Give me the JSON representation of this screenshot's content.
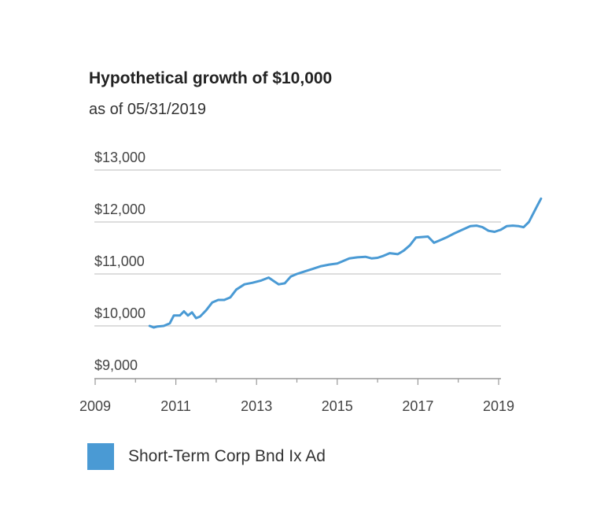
{
  "title": "Hypothetical growth of $10,000",
  "subtitle": "as of 05/31/2019",
  "colors": {
    "series": "#4a9ad4",
    "grid": "#dddddd",
    "axis": "#999999",
    "tick_text": "#444444"
  },
  "chart_data": {
    "type": "line",
    "ylim": [
      9000,
      13000
    ],
    "xlim": [
      2009,
      2019.4
    ],
    "y_ticks": [
      9000,
      10000,
      11000,
      12000,
      13000
    ],
    "y_tick_labels": [
      "$9,000",
      "$10,000",
      "$11,000",
      "$12,000",
      "$13,000"
    ],
    "x_ticks": [
      2009,
      2011,
      2013,
      2015,
      2017,
      2019
    ],
    "x_tick_labels": [
      "2009",
      "2011",
      "2013",
      "2015",
      "2017",
      "2019"
    ],
    "grid": true,
    "legend_position": "bottom-left",
    "series": [
      {
        "name": "Short-Term Corp Bnd Ix Ad",
        "color": "#4a9ad4",
        "points": [
          [
            2010.35,
            10000
          ],
          [
            2010.45,
            9970
          ],
          [
            2010.55,
            9990
          ],
          [
            2010.7,
            10000
          ],
          [
            2010.85,
            10050
          ],
          [
            2010.95,
            10200
          ],
          [
            2011.1,
            10200
          ],
          [
            2011.2,
            10280
          ],
          [
            2011.3,
            10200
          ],
          [
            2011.4,
            10260
          ],
          [
            2011.5,
            10150
          ],
          [
            2011.6,
            10180
          ],
          [
            2011.75,
            10300
          ],
          [
            2011.9,
            10450
          ],
          [
            2012.05,
            10500
          ],
          [
            2012.2,
            10500
          ],
          [
            2012.35,
            10550
          ],
          [
            2012.5,
            10700
          ],
          [
            2012.7,
            10800
          ],
          [
            2012.9,
            10830
          ],
          [
            2013.1,
            10870
          ],
          [
            2013.3,
            10930
          ],
          [
            2013.45,
            10850
          ],
          [
            2013.55,
            10800
          ],
          [
            2013.7,
            10820
          ],
          [
            2013.85,
            10950
          ],
          [
            2014.0,
            11000
          ],
          [
            2014.2,
            11050
          ],
          [
            2014.4,
            11100
          ],
          [
            2014.6,
            11150
          ],
          [
            2014.8,
            11180
          ],
          [
            2015.0,
            11200
          ],
          [
            2015.15,
            11250
          ],
          [
            2015.3,
            11300
          ],
          [
            2015.5,
            11320
          ],
          [
            2015.7,
            11330
          ],
          [
            2015.85,
            11300
          ],
          [
            2016.0,
            11310
          ],
          [
            2016.15,
            11350
          ],
          [
            2016.3,
            11400
          ],
          [
            2016.5,
            11380
          ],
          [
            2016.65,
            11450
          ],
          [
            2016.8,
            11550
          ],
          [
            2016.95,
            11700
          ],
          [
            2017.1,
            11710
          ],
          [
            2017.25,
            11720
          ],
          [
            2017.4,
            11600
          ],
          [
            2017.55,
            11650
          ],
          [
            2017.7,
            11700
          ],
          [
            2017.9,
            11780
          ],
          [
            2018.1,
            11850
          ],
          [
            2018.3,
            11920
          ],
          [
            2018.45,
            11930
          ],
          [
            2018.6,
            11900
          ],
          [
            2018.75,
            11830
          ],
          [
            2018.9,
            11810
          ],
          [
            2019.05,
            11850
          ],
          [
            2019.2,
            11920
          ],
          [
            2019.35,
            11930
          ],
          [
            2019.5,
            11920
          ],
          [
            2019.62,
            11900
          ],
          [
            2019.75,
            12000
          ],
          [
            2019.85,
            12150
          ],
          [
            2019.95,
            12300
          ],
          [
            2020.05,
            12450
          ]
        ]
      }
    ]
  }
}
